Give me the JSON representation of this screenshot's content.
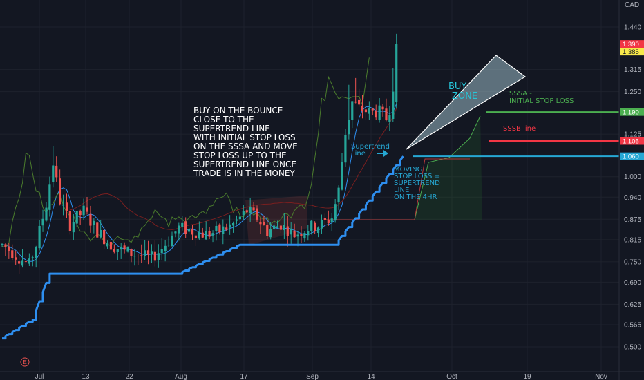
{
  "currency": "CAD",
  "chart_data": {
    "type": "candlestick",
    "y_axis": {
      "ticks": [
        1.44,
        1.315,
        1.25,
        1.125,
        1.0,
        0.94,
        0.875,
        0.815,
        0.75,
        0.69,
        0.625,
        0.565,
        0.5
      ],
      "tick_labels": [
        "1.440",
        "1.315",
        "1.250",
        "1.125",
        "1.000",
        "0.940",
        "0.875",
        "0.815",
        "0.750",
        "0.690",
        "0.625",
        "0.565",
        "0.500"
      ]
    },
    "x_axis": {
      "tick_labels": [
        "Jul",
        "13",
        "22",
        "Aug",
        "17",
        "Sep",
        "14",
        "Oct",
        "19",
        "Nov"
      ]
    },
    "price_labels": [
      {
        "value": 1.39,
        "text": "1.390",
        "bg": "#f23645",
        "fg": "#ffffff"
      },
      {
        "value": 1.385,
        "text": "1.385",
        "bg": "#f7e94b",
        "fg": "#131722"
      },
      {
        "value": 1.19,
        "text": "1.190",
        "bg": "#4caf50",
        "fg": "#ffffff"
      },
      {
        "value": 1.105,
        "text": "1.105",
        "bg": "#f23645",
        "fg": "#ffffff"
      },
      {
        "value": 1.06,
        "text": "1.060",
        "bg": "#26a8d4",
        "fg": "#ffffff"
      }
    ],
    "supertrend_steps": [
      {
        "from": 0,
        "to": 9,
        "start": 0.525,
        "end": 0.58
      },
      {
        "from": 9,
        "to": 14,
        "start": 0.58,
        "end": 0.715
      },
      {
        "from": 14,
        "to": 52,
        "value": 0.715
      },
      {
        "from": 52,
        "to": 70,
        "start": 0.715,
        "end": 0.8
      },
      {
        "from": 70,
        "to": 98,
        "value": 0.8
      },
      {
        "from": 98,
        "to": 118,
        "start": 0.8,
        "end": 1.06
      }
    ],
    "horizontal_levels": [
      {
        "name": "SSSA - INITIAL STOP LOSS",
        "value": 1.19,
        "color": "#4caf50"
      },
      {
        "name": "SSSB line",
        "value": 1.105,
        "color": "#f23645"
      },
      {
        "name": "Supertrend",
        "value": 1.06,
        "color": "#26a8d4"
      }
    ],
    "colors": {
      "up": "#26a69a",
      "down": "#ef5350",
      "supertrend": "#2e8ff0"
    }
  },
  "annotations": {
    "main_text": [
      "BUY ON THE BOUNCE",
      "CLOSE TO THE",
      "SUPERTREND LINE",
      "WITH INITIAL STOP LOSS",
      "ON THE SSSA AND MOVE",
      "STOP LOSS UP TO THE",
      "SUPERTREND LINE ONCE",
      "TRADE IS IN THE MONEY"
    ],
    "buy_zone": [
      "BUY",
      "ZONE"
    ],
    "sssa_label": [
      "SSSA -",
      "INITIAL STOP LOSS"
    ],
    "sssb_label": "SSSB line",
    "supertrend_label": [
      "Supertrend",
      "Line"
    ],
    "moving_stop": [
      "MOVING",
      "STOP LOSS =",
      "SUPERTREND",
      "LINE",
      "ON THE 4HR"
    ],
    "earnings_marker": "E"
  }
}
